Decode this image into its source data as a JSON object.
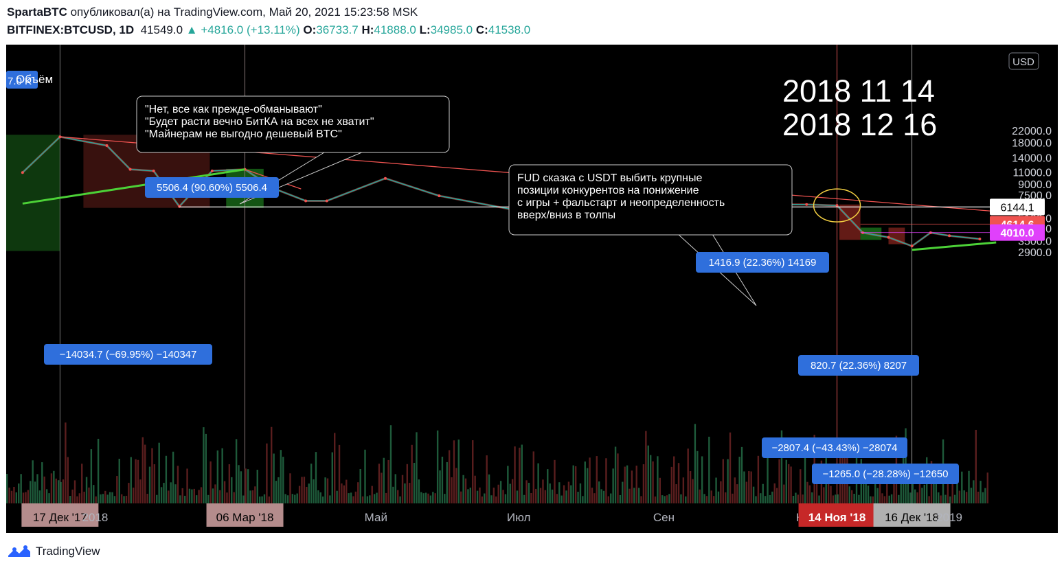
{
  "header": {
    "author": "SpartaBTC",
    "published_text": "опубликовал(а) на TradingView.com, Май 20, 2021 15:23:58 MSK",
    "symbol": "BITFINEX:BTCUSD, 1D",
    "last": "41549.0",
    "change": "+4816.0 (+13.11%)",
    "o_label": "O:",
    "o": "36733.7",
    "h_label": "H:",
    "h": "41888.0",
    "l_label": "L:",
    "l": "34985.0",
    "c_label": "C:",
    "c": "41538.0"
  },
  "footer": {
    "brand": "TradingView"
  },
  "chart_data": {
    "type": "line",
    "currency": "USD",
    "y_scale": "log",
    "ylim": [
      2500,
      25000
    ],
    "y_ticks": [
      "22000.0",
      "18000.0",
      "14000.0",
      "11000.0",
      "9000.0",
      "7500.0",
      "6144.1",
      "5100.0",
      "4614.6",
      "4300.0",
      "4010.0",
      "3500.0",
      "2900.0"
    ],
    "price_tags": [
      {
        "label": "6144.1",
        "value": 6144.1,
        "style": "white"
      },
      {
        "label": "4614.6",
        "value": 4614.6,
        "style": "red"
      },
      {
        "label": "4010.0",
        "value": 4010.0,
        "style": "magenta"
      }
    ],
    "x_ticks": [
      "17 Дек '17",
      "2018",
      "06 Мар '18",
      "Май",
      "Июл",
      "Сен",
      "Ноя",
      "14 Ноя '18",
      "16 Дек '18",
      "2019"
    ],
    "x_dates": [
      "2017-12-17",
      "2018-01-01",
      "2018-03-06",
      "2018-05-01",
      "2018-07-01",
      "2018-09-01",
      "2018-11-01",
      "2018-11-14",
      "2018-12-16",
      "2019-01-01"
    ],
    "price_series": {
      "name": "BTCUSD",
      "x": [
        "2017-12-01",
        "2017-12-17",
        "2018-01-06",
        "2018-01-16",
        "2018-01-26",
        "2018-02-06",
        "2018-02-20",
        "2018-03-06",
        "2018-03-18",
        "2018-04-01",
        "2018-04-10",
        "2018-05-05",
        "2018-05-28",
        "2018-06-28",
        "2018-07-25",
        "2018-08-14",
        "2018-09-05",
        "2018-09-20",
        "2018-10-15",
        "2018-11-01",
        "2018-11-14",
        "2018-11-25",
        "2018-12-06",
        "2018-12-16",
        "2018-12-24",
        "2019-01-01",
        "2019-01-14"
      ],
      "values": [
        10900,
        19800,
        17100,
        11500,
        11200,
        6200,
        11200,
        11500,
        8400,
        6800,
        6800,
        9900,
        7400,
        5900,
        8300,
        6300,
        7400,
        6500,
        6400,
        6400,
        6300,
        4000,
        3700,
        3200,
        4000,
        3800,
        3600
      ]
    },
    "volume": "volume histogram (unlabeled)",
    "trendlines": [
      {
        "name": "resistance",
        "color": "#ef5350",
        "points": [
          [
            "2017-12-17",
            19800
          ],
          [
            "2019-01-21",
            5700
          ]
        ]
      },
      {
        "name": "green-uptrend",
        "color": "#4cd137",
        "points": [
          [
            "2017-12-01",
            6500
          ],
          [
            "2018-03-06",
            11500
          ]
        ]
      },
      {
        "name": "green-support",
        "color": "#4cd137",
        "points": [
          [
            "2018-12-16",
            3000
          ],
          [
            "2019-01-21",
            3400
          ]
        ]
      },
      {
        "name": "support-6144",
        "color": "#ffffff",
        "points": [
          [
            "2018-02-06",
            6144.1
          ],
          [
            "2019-01-21",
            6144.1
          ]
        ]
      }
    ],
    "measures": [
      {
        "label": "−14034.7 (−69.95%) −140347"
      },
      {
        "label": "5506.4 (90.60%) 5506.4"
      },
      {
        "label": "1416.9 (22.36%) 14169"
      },
      {
        "label": "820.7 (22.36%) 8207"
      },
      {
        "label": "−2807.4 (−43.43%) −28074"
      },
      {
        "label": "−1265.0 (−28.28%) −12650"
      }
    ],
    "annotations": {
      "callout1": [
        "\"Нет, все как прежде-обманывают\"",
        "\"Будет расти вечно БитКА на всех не хватит\"",
        "\"Майнерам не выгодно дешевый BTC\""
      ],
      "callout2": [
        "FUD сказка с USDT выбить крупные",
        "позиции конкурентов на понижение",
        "с игры + фальстарт и неопределенность",
        "вверх/вниз в толпы"
      ],
      "dates_text": [
        "2018 11 14",
        "2018 12 16"
      ],
      "volume_label": "Объём",
      "volume_value": "7.0 K"
    }
  }
}
